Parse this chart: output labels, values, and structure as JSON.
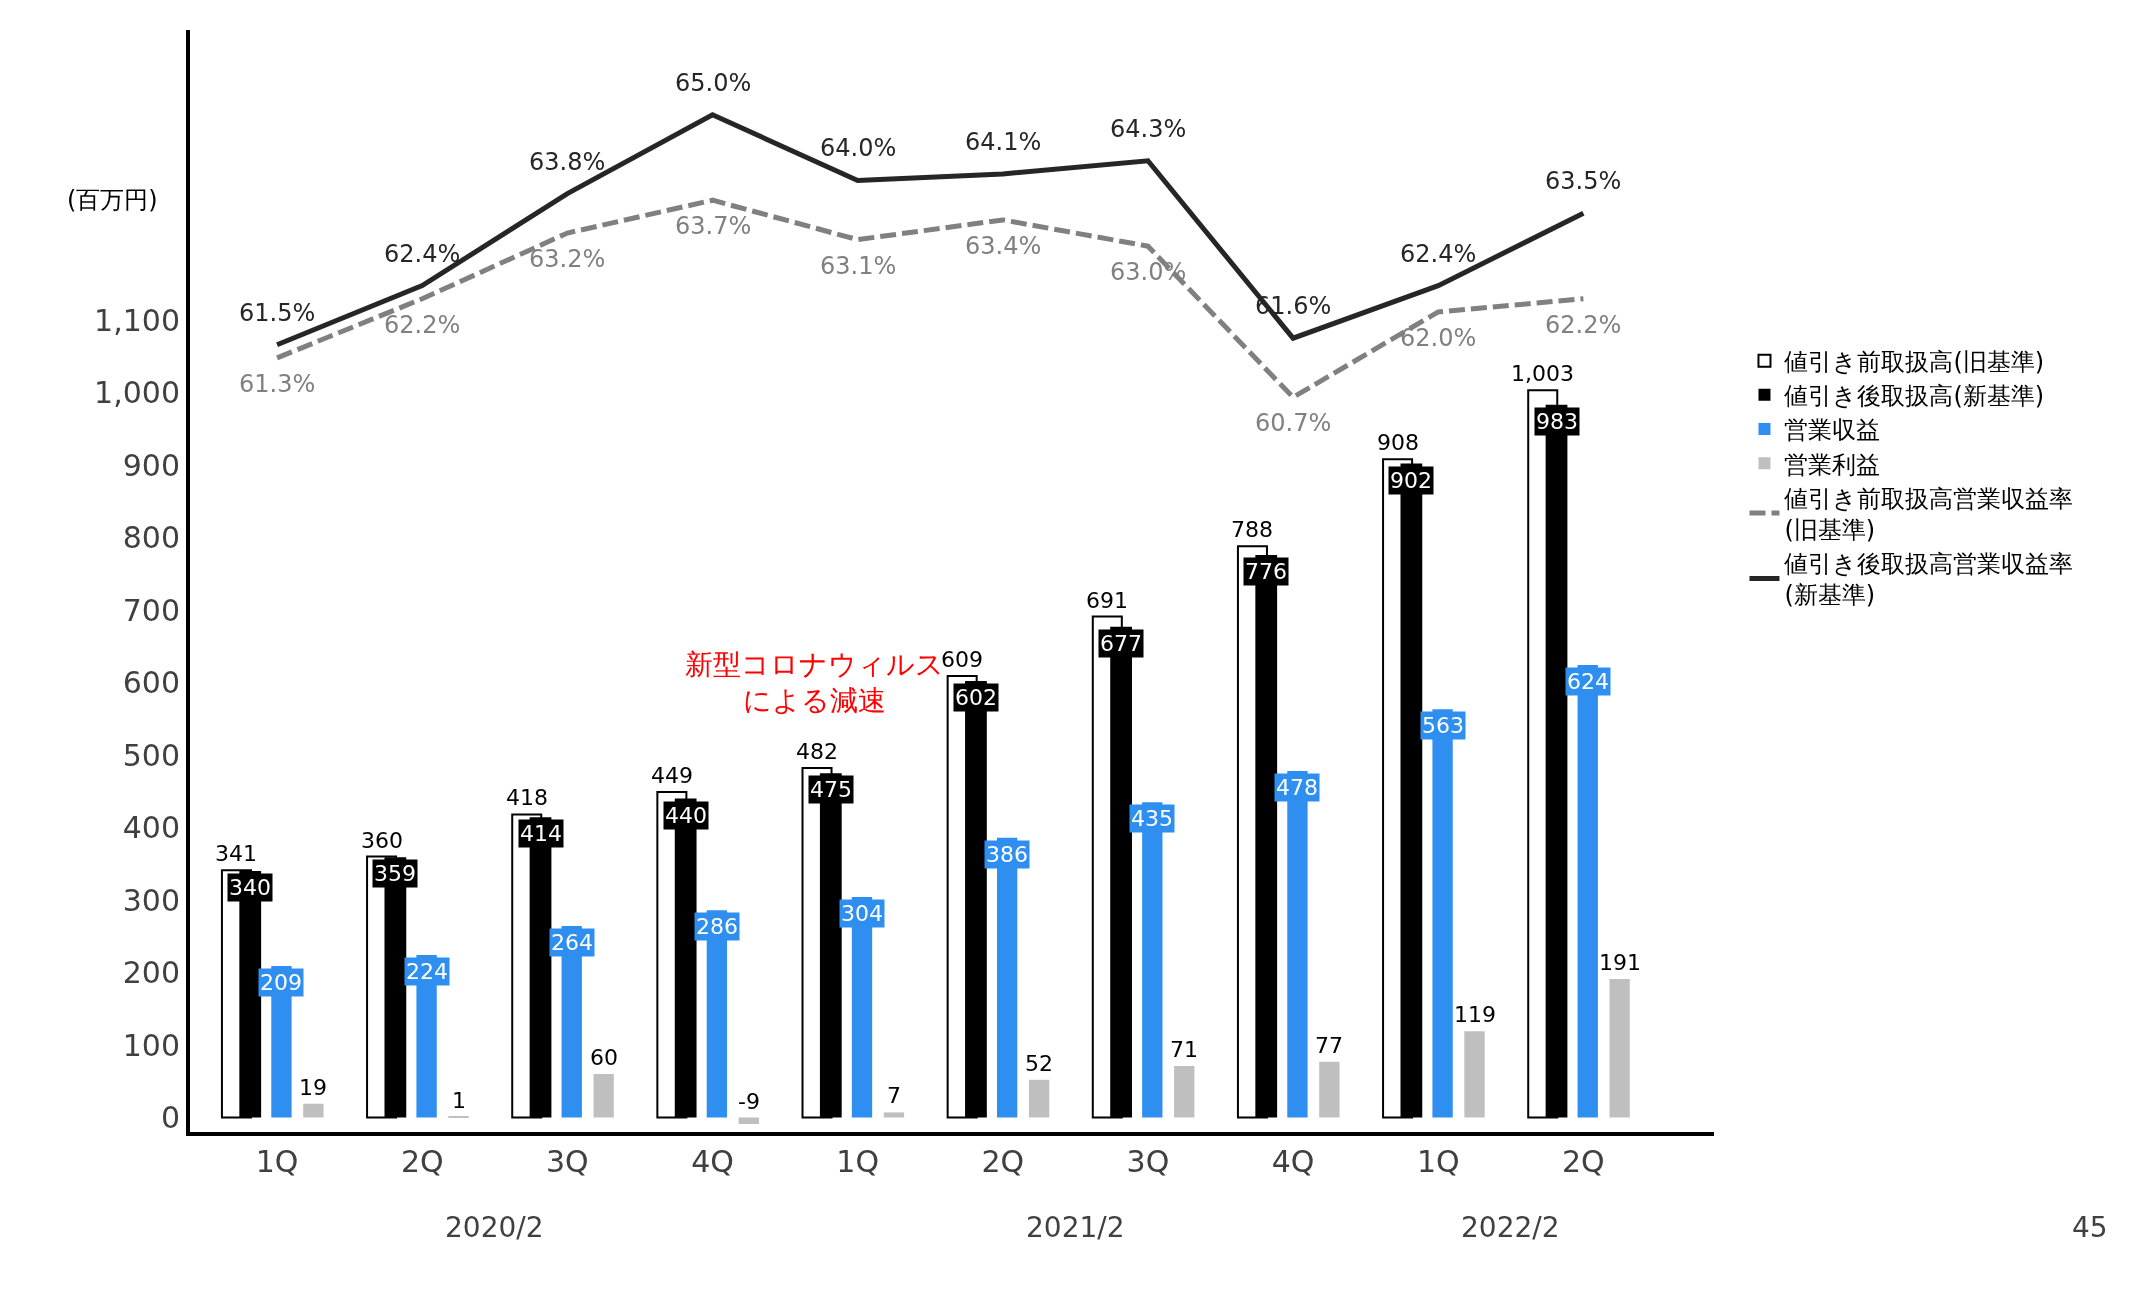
{
  "chart_data": {
    "type": "bar",
    "categories": [
      "1Q",
      "2Q",
      "3Q",
      "4Q",
      "1Q",
      "2Q",
      "3Q",
      "4Q",
      "1Q",
      "2Q"
    ],
    "ylabel": "(百万円)",
    "ylim": [
      -20,
      1500
    ],
    "yticks": [
      0,
      100,
      200,
      300,
      400,
      500,
      600,
      700,
      800,
      900,
      {
        "value": 1000,
        "label": "1,000"
      },
      {
        "value": 1100,
        "label": "1,100"
      }
    ],
    "tick_labels": "xy",
    "legend": "right",
    "data_labels": true,
    "series": [
      {
        "name": "値引き前取扱高(旧基準)",
        "color": "#ffffff",
        "values": [
          341,
          360,
          418,
          449,
          482,
          609,
          691,
          788,
          908,
          1003
        ],
        "value_labels": [
          "341",
          "360",
          "418",
          "449",
          "482",
          "609",
          "691",
          "788",
          "908",
          "1,003"
        ]
      },
      {
        "name": "値引き後取扱高(新基準)",
        "color": "#000000",
        "values": [
          340,
          359,
          414,
          440,
          475,
          602,
          677,
          776,
          902,
          983
        ]
      },
      {
        "name": "営業収益",
        "color": "#2e8ff0",
        "values": [
          209,
          224,
          264,
          286,
          304,
          386,
          435,
          478,
          563,
          624
        ]
      },
      {
        "name": "営業利益",
        "color": "#bfbfbf",
        "values": [
          19,
          1,
          60,
          -9,
          7,
          52,
          71,
          77,
          119,
          191
        ]
      },
      {
        "name": "値引き前取扱高営業収益率\n(旧基準)",
        "type": "line",
        "axis": "y2",
        "color": "#808080",
        "line_style": "dashed",
        "values": [
          61.3,
          62.2,
          63.2,
          63.7,
          63.1,
          63.4,
          63.0,
          60.7,
          62.0,
          62.2
        ],
        "value_labels": [
          "61.3%",
          "62.2%",
          "63.2%",
          "63.7%",
          "63.1%",
          "63.4%",
          "63.0%",
          "60.7%",
          "62.0%",
          "62.2%"
        ]
      },
      {
        "name": "値引き後取扱高営業収益率\n(新基準)",
        "type": "line",
        "axis": "y2",
        "color": "#262626",
        "line_style": "solid",
        "values": [
          61.5,
          62.4,
          63.8,
          65.0,
          64.0,
          64.1,
          64.3,
          61.6,
          62.4,
          63.5
        ],
        "value_labels": [
          "61.5%",
          "62.4%",
          "63.8%",
          "65.0%",
          "64.0%",
          "64.1%",
          "64.3%",
          "61.6%",
          "62.4%",
          "63.5%"
        ]
      }
    ],
    "annotations": [
      "新型コロナウィルスによる減速",
      "2020/2",
      "2021/2",
      "2022/2",
      "45"
    ]
  }
}
